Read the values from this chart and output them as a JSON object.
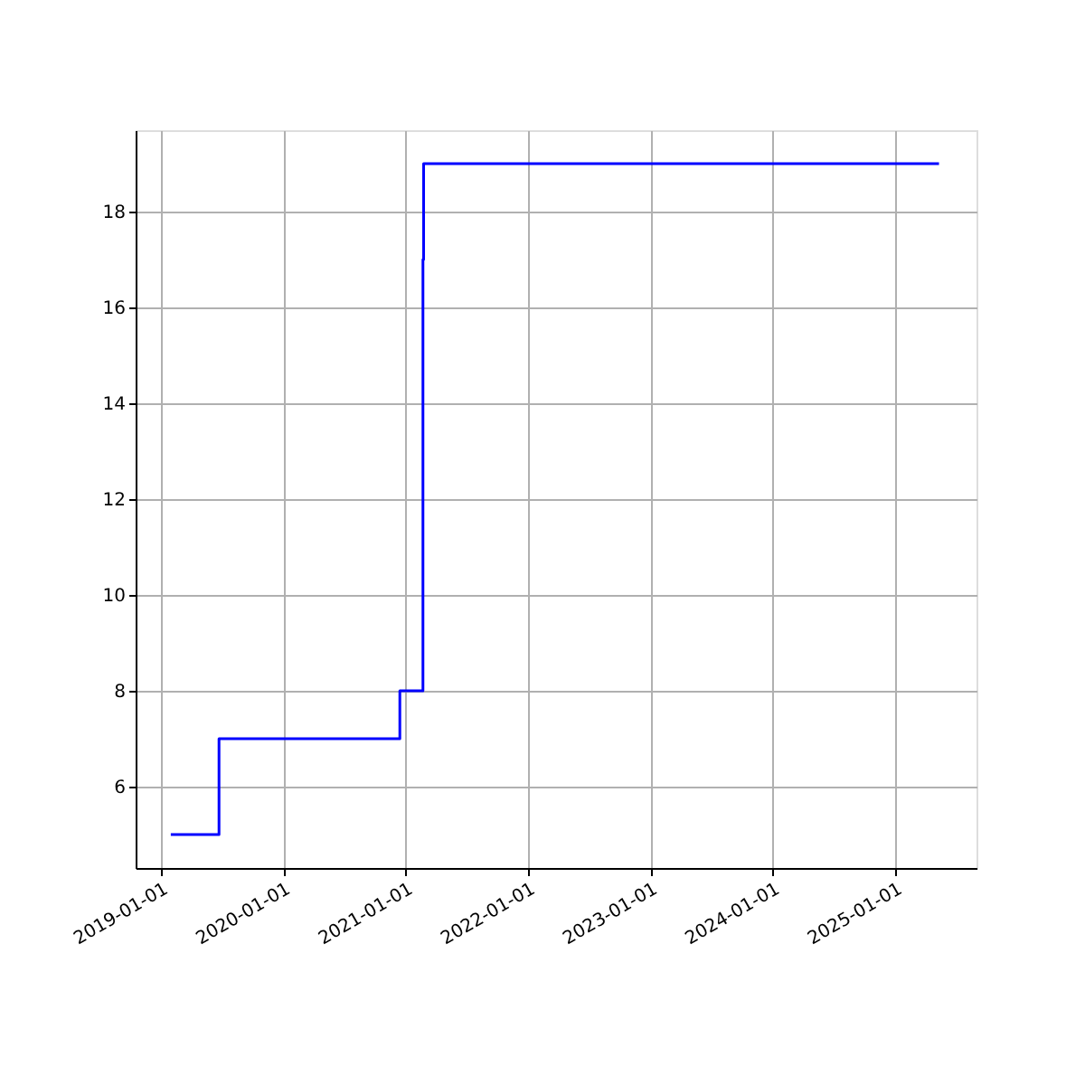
{
  "chart_data": {
    "type": "step",
    "x": [
      "2019-01-30",
      "2019-06-23",
      "2020-12-14",
      "2021-02-21",
      "2021-02-23",
      "2025-05-12"
    ],
    "series": [
      {
        "color": "#0000ff",
        "values": [
          5,
          7,
          8,
          17,
          19,
          19
        ]
      }
    ],
    "xlim": [
      "2018-10-17",
      "2025-09-01"
    ],
    "xticks": [
      "2019-01-01",
      "2020-01-01",
      "2021-01-01",
      "2022-01-01",
      "2023-01-01",
      "2024-01-01",
      "2025-01-01"
    ],
    "ylim": [
      4.3,
      19.7
    ],
    "yticks": [
      6,
      8,
      10,
      12,
      14,
      16,
      18
    ],
    "grid": true,
    "marker": "none",
    "line_style": "solid",
    "legend": false
  }
}
